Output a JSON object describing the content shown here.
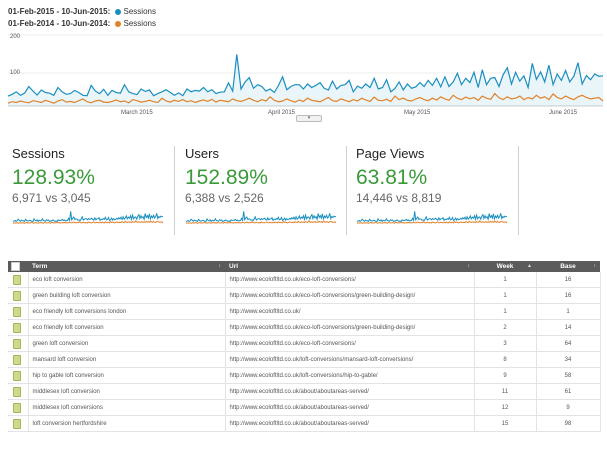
{
  "legend": [
    {
      "range": "01-Feb-2015 - 10-Jun-2015:",
      "metric": "Sessions",
      "color": "#1a8fbf"
    },
    {
      "range": "01-Feb-2014 - 10-Jun-2014:",
      "metric": "Sessions",
      "color": "#e0822a"
    }
  ],
  "chart_data": {
    "type": "line",
    "y_ticks": [
      "200",
      "100"
    ],
    "ylim": [
      0,
      200
    ],
    "x_tick_labels": [
      "March 2015",
      "April 2015",
      "May 2015",
      "June 2015"
    ],
    "series": [
      {
        "name": "Sessions",
        "color": "#1a8fbf",
        "values": [
          28,
          33,
          40,
          30,
          36,
          55,
          42,
          31,
          45,
          38,
          36,
          30,
          52,
          40,
          33,
          35,
          44,
          38,
          30,
          29,
          58,
          42,
          35,
          47,
          30,
          44,
          38,
          36,
          60,
          40,
          35,
          32,
          48,
          41,
          45,
          29,
          35,
          40,
          46,
          38,
          30,
          37,
          29,
          48,
          40,
          44,
          42,
          52,
          40,
          46,
          35,
          39,
          40,
          65,
          42,
          145,
          48,
          68,
          80,
          50,
          60,
          55,
          42,
          48,
          38,
          58,
          82,
          46,
          55,
          60,
          60,
          48,
          62,
          52,
          58,
          66,
          50,
          45,
          70,
          48,
          58,
          60,
          72,
          40,
          56,
          50,
          62,
          52,
          78,
          48,
          52,
          74,
          40,
          50,
          68,
          45,
          62,
          50,
          54,
          66,
          55,
          72,
          58,
          78,
          54,
          82,
          55,
          68,
          92,
          60,
          78,
          66,
          95,
          52,
          102,
          60,
          78,
          80,
          55,
          88,
          108,
          62,
          95,
          70,
          85,
          52,
          120,
          75,
          96,
          68,
          115,
          60,
          90,
          72,
          100,
          68,
          84,
          122,
          62,
          86,
          74,
          90,
          84,
          85
        ]
      },
      {
        "name": "Sessions",
        "color": "#e0822a",
        "values": [
          8,
          12,
          10,
          14,
          11,
          9,
          15,
          13,
          10,
          16,
          12,
          8,
          14,
          18,
          11,
          13,
          10,
          15,
          20,
          12,
          9,
          14,
          16,
          11,
          10,
          13,
          17,
          12,
          14,
          9,
          18,
          15,
          11,
          13,
          16,
          12,
          10,
          22,
          14,
          11,
          16,
          13,
          18,
          12,
          15,
          10,
          14,
          17,
          13,
          19,
          11,
          16,
          14,
          12,
          20,
          15,
          13,
          17,
          22,
          16,
          12,
          18,
          14,
          26,
          16,
          12,
          14,
          20,
          15,
          11,
          17,
          13,
          22,
          16,
          14,
          12,
          18,
          24,
          15,
          13,
          20,
          16,
          12,
          18,
          14,
          22,
          17,
          13,
          25,
          16,
          15,
          19,
          13,
          28,
          18,
          22,
          16,
          14,
          20,
          24,
          18,
          15,
          22,
          17,
          26,
          20,
          16,
          30,
          22,
          18,
          25,
          20,
          24,
          16,
          28,
          22,
          19,
          35,
          23,
          18,
          26,
          20,
          22,
          28,
          18,
          24,
          20,
          30,
          22,
          26,
          18,
          34,
          24,
          20,
          28,
          22,
          18,
          26,
          30,
          24,
          20,
          22,
          24,
          14
        ]
      }
    ]
  },
  "metrics": [
    {
      "label": "Sessions",
      "pct": "128.93%",
      "compare": "6,971 vs 3,045"
    },
    {
      "label": "Users",
      "pct": "152.89%",
      "compare": "6,388 vs 2,526"
    },
    {
      "label": "Page Views",
      "pct": "63.81%",
      "compare": "14,446 vs 8,819"
    }
  ],
  "table": {
    "headers": {
      "term": "Term",
      "url": "Url",
      "week": "Week",
      "base": "Base"
    },
    "rows": [
      {
        "term": "eco loft conversion",
        "url": "http://www.ecoloftltd.co.uk/eco-loft-conversions/",
        "week": "1",
        "base": "16"
      },
      {
        "term": "green building loft conversion",
        "url": "http://www.ecoloftltd.co.uk/eco-loft-conversions/green-building-design/",
        "week": "1",
        "base": "16"
      },
      {
        "term": "eco friendly loft conversions london",
        "url": "http://www.ecoloftltd.co.uk/",
        "week": "1",
        "base": "1"
      },
      {
        "term": "eco friendly loft conversion",
        "url": "http://www.ecoloftltd.co.uk/eco-loft-conversions/green-building-design/",
        "week": "2",
        "base": "14"
      },
      {
        "term": "green loft conversion",
        "url": "http://www.ecoloftltd.co.uk/eco-loft-conversions/",
        "week": "3",
        "base": "64"
      },
      {
        "term": "mansard loft conversion",
        "url": "http://www.ecoloftltd.co.uk/loft-conversions/mansard-loft-conversions/",
        "week": "8",
        "base": "34"
      },
      {
        "term": "hip to gable loft conversion",
        "url": "http://www.ecoloftltd.co.uk/loft-conversions/hip-to-gable/",
        "week": "9",
        "base": "58"
      },
      {
        "term": "middlesex loft conversion",
        "url": "http://www.ecoloftltd.co.uk/about/aboutareas-served/",
        "week": "11",
        "base": "61"
      },
      {
        "term": "middlesex loft conversions",
        "url": "http://www.ecoloftltd.co.uk/about/aboutareas-served/",
        "week": "12",
        "base": "9"
      },
      {
        "term": "loft conversion hertfordshire",
        "url": "http://www.ecoloftltd.co.uk/about/aboutareas-served/",
        "week": "15",
        "base": "98"
      }
    ]
  }
}
